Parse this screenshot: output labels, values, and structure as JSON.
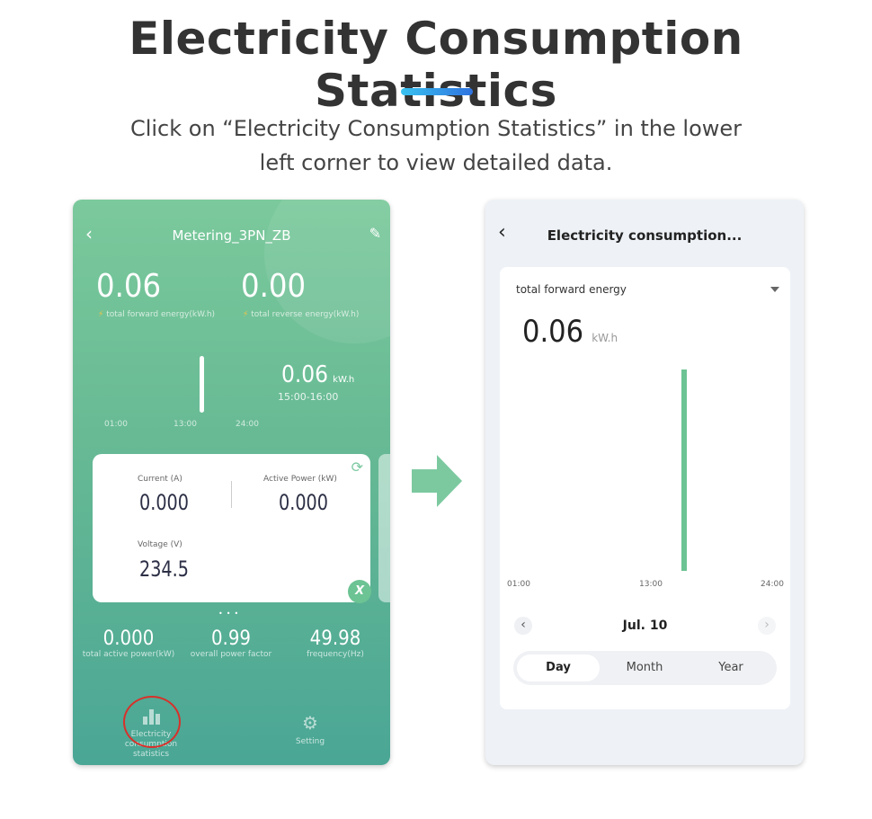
{
  "title": "Electricity Consumption Statistics",
  "subtitle_line1": "Click on “Electricity Consumption Statistics” in the lower",
  "subtitle_line2": "left corner to view detailed data.",
  "left_screen": {
    "header": "Metering_3PN_ZB",
    "forward_value": "0.06",
    "forward_label": "total forward energy(kW.h)",
    "reverse_value": "0.00",
    "reverse_label": "total reverse energy(kW.h)",
    "mini_chart": {
      "x_ticks": [
        "01:00",
        "13:00",
        "24:00"
      ],
      "bar_fraction": 0.9
    },
    "selected_value": "0.06",
    "selected_unit": "kW.h",
    "selected_range": "15:00-16:00",
    "card": {
      "current_label": "Current (A)",
      "current_value": "0.000",
      "power_label": "Active Power (kW)",
      "power_value": "0.000",
      "voltage_label": "Voltage (V)",
      "voltage_value": "234.5",
      "badge": "X"
    },
    "stats": [
      {
        "value": "0.000",
        "label": "total active power(kW)"
      },
      {
        "value": "0.99",
        "label": "overall power factor"
      },
      {
        "value": "49.98",
        "label": "frequency(Hz)"
      }
    ],
    "nav": {
      "stats_label_1": "Electricity",
      "stats_label_2": "consumption",
      "stats_label_3": "statistics",
      "setting_label": "Setting"
    },
    "highlight_color": "#d9302a"
  },
  "right_screen": {
    "header": "Electricity consumption...",
    "dropdown": "total forward energy",
    "value": "0.06",
    "unit": "kW.h",
    "chart_data": {
      "type": "bar",
      "x_ticks": [
        "01:00",
        "13:00",
        "24:00"
      ],
      "bar_fraction": 1.0,
      "color": "#6cc393"
    },
    "date": "Jul. 10",
    "tabs": [
      "Day",
      "Month",
      "Year"
    ],
    "active_tab": "Day"
  }
}
